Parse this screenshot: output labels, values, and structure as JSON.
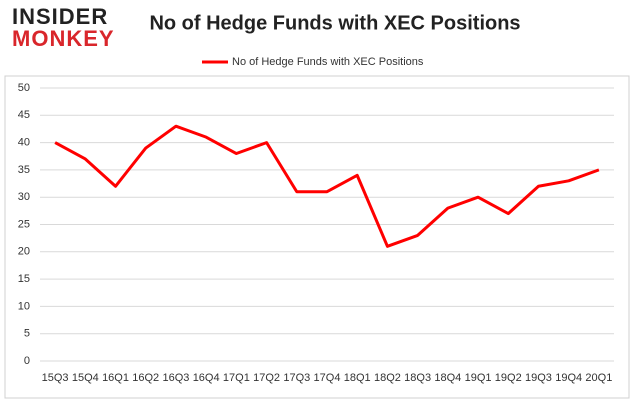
{
  "logo": [
    "INSIDER",
    "MONKEY"
  ],
  "chart_data": {
    "type": "line",
    "title": "No of Hedge Funds with XEC Positions",
    "categories": [
      "15Q3",
      "15Q4",
      "16Q1",
      "16Q2",
      "16Q3",
      "16Q4",
      "17Q1",
      "17Q2",
      "17Q3",
      "17Q4",
      "18Q1",
      "18Q2",
      "18Q3",
      "18Q4",
      "19Q1",
      "19Q2",
      "19Q3",
      "19Q4",
      "20Q1"
    ],
    "series": [
      {
        "name": "No of Hedge Funds with XEC Positions",
        "color": "#ff0000",
        "values": [
          40,
          37,
          32,
          39,
          43,
          41,
          38,
          40,
          31,
          31,
          34,
          21,
          23,
          28,
          30,
          27,
          32,
          33,
          35
        ]
      }
    ],
    "ylim": [
      0,
      50
    ],
    "yticks": [
      0,
      5,
      10,
      15,
      20,
      25,
      30,
      35,
      40,
      45,
      50
    ],
    "grid": true,
    "legend": "top"
  }
}
